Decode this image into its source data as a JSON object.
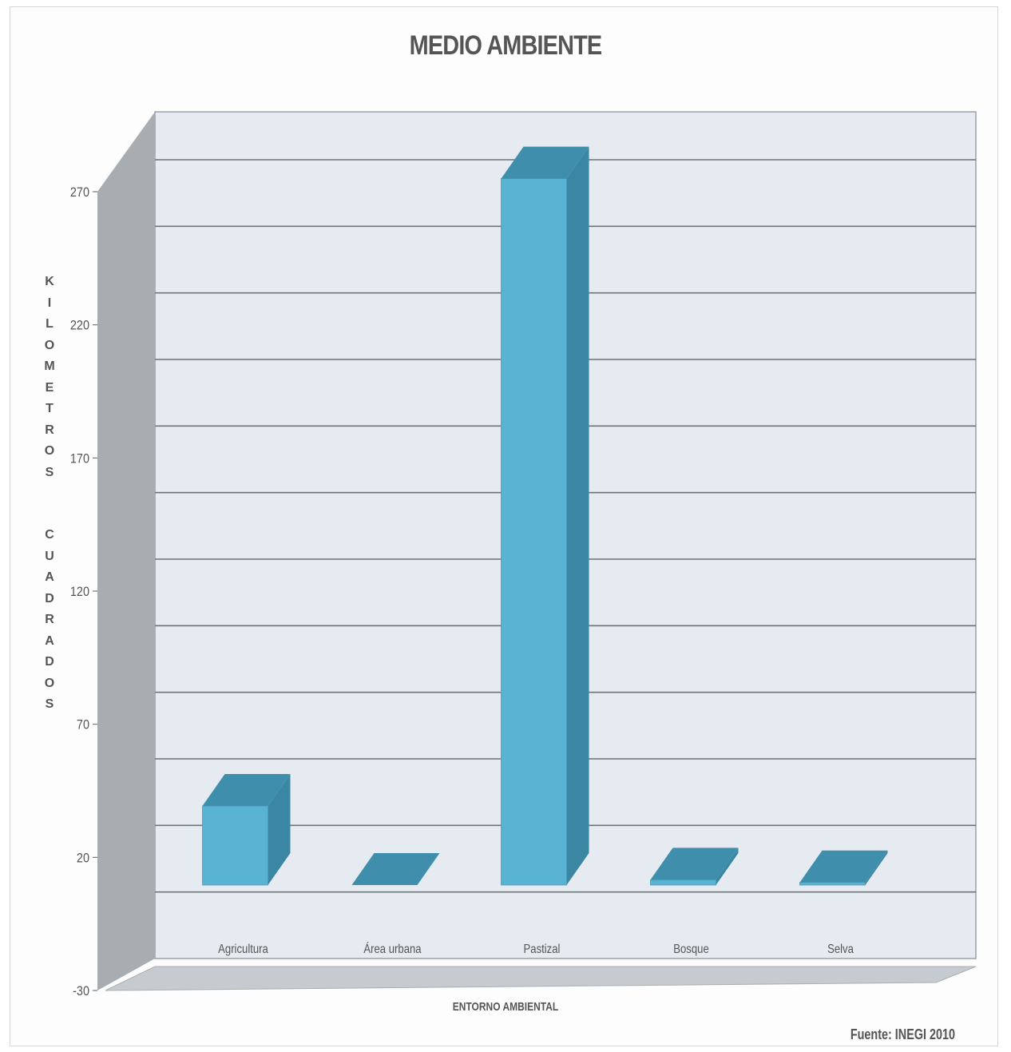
{
  "chart_data": {
    "type": "bar",
    "title": "MEDIO AMBIENTE",
    "xlabel": "ENTORNO AMBIENTAL",
    "ylabel": "KILOMETROS CUADRADOS",
    "categories": [
      "Agricultura",
      "Área urbana",
      "Pastizal",
      "Bosque",
      "Selva"
    ],
    "values": [
      30,
      0,
      268,
      2,
      1
    ],
    "yticks": [
      "270",
      "220",
      "170",
      "120",
      "70",
      "20",
      "-30"
    ],
    "ylim": [
      -30,
      270
    ],
    "grid": true,
    "three_d": true,
    "colors": {
      "bar_front": "#58b2d1",
      "bar_top": "#3f8fac",
      "bar_side": "#3b86a3",
      "wall": "#e5ebf1",
      "left_wall": "#a8adb2",
      "floor": "#c6cbcf",
      "grid": "#6e7378",
      "text": "#555555"
    }
  },
  "source": "Fuente: INEGI 2010"
}
